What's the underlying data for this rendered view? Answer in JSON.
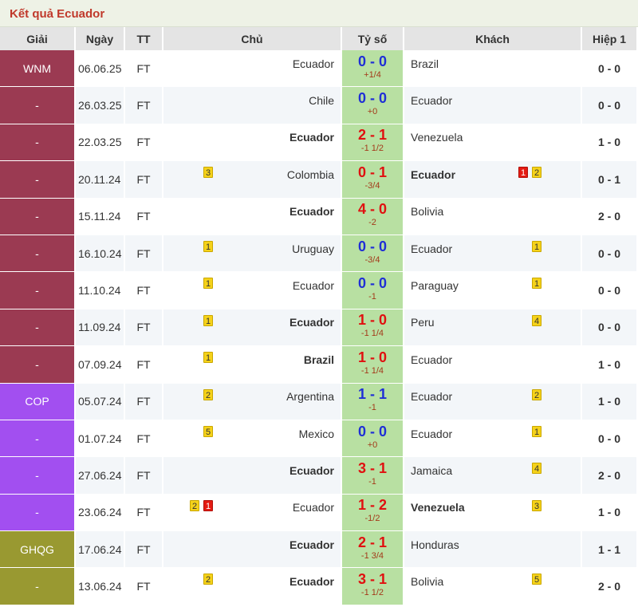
{
  "title": "Kết quả Ecuador",
  "headers": [
    "Giải",
    "Ngày",
    "TT",
    "Chủ",
    "Tỷ số",
    "Khách",
    "Hiệp 1"
  ],
  "rows": [
    {
      "league": "WNM",
      "league_color": "wnm",
      "date": "06.06.25",
      "status": "FT",
      "home": "Ecuador",
      "home_bold": false,
      "home_cards": [],
      "score": "0 - 0",
      "score_color": "blue",
      "handicap": "+1/4",
      "away": "Brazil",
      "away_bold": false,
      "away_cards": [],
      "ht": "0 - 0"
    },
    {
      "league": "-",
      "league_color": "wnm",
      "date": "26.03.25",
      "status": "FT",
      "home": "Chile",
      "home_bold": false,
      "home_cards": [],
      "score": "0 - 0",
      "score_color": "blue",
      "handicap": "+0",
      "away": "Ecuador",
      "away_bold": false,
      "away_cards": [],
      "ht": "0 - 0"
    },
    {
      "league": "-",
      "league_color": "wnm",
      "date": "22.03.25",
      "status": "FT",
      "home": "Ecuador",
      "home_bold": true,
      "home_cards": [],
      "score": "2 - 1",
      "score_color": "red",
      "handicap": "-1 1/2",
      "away": "Venezuela",
      "away_bold": false,
      "away_cards": [],
      "ht": "1 - 0"
    },
    {
      "league": "-",
      "league_color": "wnm",
      "date": "20.11.24",
      "status": "FT",
      "home": "Colombia",
      "home_bold": false,
      "home_cards": [
        {
          "type": "yellow",
          "n": "3"
        }
      ],
      "score": "0 - 1",
      "score_color": "red",
      "handicap": "-3/4",
      "away": "Ecuador",
      "away_bold": true,
      "away_cards": [
        {
          "type": "red",
          "n": "1"
        },
        {
          "type": "yellow",
          "n": "2"
        }
      ],
      "ht": "0 - 1"
    },
    {
      "league": "-",
      "league_color": "wnm",
      "date": "15.11.24",
      "status": "FT",
      "home": "Ecuador",
      "home_bold": true,
      "home_cards": [],
      "score": "4 - 0",
      "score_color": "red",
      "handicap": "-2",
      "away": "Bolivia",
      "away_bold": false,
      "away_cards": [],
      "ht": "2 - 0"
    },
    {
      "league": "-",
      "league_color": "wnm",
      "date": "16.10.24",
      "status": "FT",
      "home": "Uruguay",
      "home_bold": false,
      "home_cards": [
        {
          "type": "yellow",
          "n": "1"
        }
      ],
      "score": "0 - 0",
      "score_color": "blue",
      "handicap": "-3/4",
      "away": "Ecuador",
      "away_bold": false,
      "away_cards": [
        {
          "type": "yellow",
          "n": "1"
        }
      ],
      "ht": "0 - 0"
    },
    {
      "league": "-",
      "league_color": "wnm",
      "date": "11.10.24",
      "status": "FT",
      "home": "Ecuador",
      "home_bold": false,
      "home_cards": [
        {
          "type": "yellow",
          "n": "1"
        }
      ],
      "score": "0 - 0",
      "score_color": "blue",
      "handicap": "-1",
      "away": "Paraguay",
      "away_bold": false,
      "away_cards": [
        {
          "type": "yellow",
          "n": "1"
        }
      ],
      "ht": "0 - 0"
    },
    {
      "league": "-",
      "league_color": "wnm",
      "date": "11.09.24",
      "status": "FT",
      "home": "Ecuador",
      "home_bold": true,
      "home_cards": [
        {
          "type": "yellow",
          "n": "1"
        }
      ],
      "score": "1 - 0",
      "score_color": "red",
      "handicap": "-1 1/4",
      "away": "Peru",
      "away_bold": false,
      "away_cards": [
        {
          "type": "yellow",
          "n": "4"
        }
      ],
      "ht": "0 - 0"
    },
    {
      "league": "-",
      "league_color": "wnm",
      "date": "07.09.24",
      "status": "FT",
      "home": "Brazil",
      "home_bold": true,
      "home_cards": [
        {
          "type": "yellow",
          "n": "1"
        }
      ],
      "score": "1 - 0",
      "score_color": "red",
      "handicap": "-1 1/4",
      "away": "Ecuador",
      "away_bold": false,
      "away_cards": [],
      "ht": "1 - 0"
    },
    {
      "league": "COP",
      "league_color": "cop",
      "date": "05.07.24",
      "status": "FT",
      "home": "Argentina",
      "home_bold": false,
      "home_cards": [
        {
          "type": "yellow",
          "n": "2"
        }
      ],
      "score": "1 - 1",
      "score_color": "blue",
      "handicap": "-1",
      "away": "Ecuador",
      "away_bold": false,
      "away_cards": [
        {
          "type": "yellow",
          "n": "2"
        }
      ],
      "ht": "1 - 0"
    },
    {
      "league": "-",
      "league_color": "cop",
      "date": "01.07.24",
      "status": "FT",
      "home": "Mexico",
      "home_bold": false,
      "home_cards": [
        {
          "type": "yellow",
          "n": "5"
        }
      ],
      "score": "0 - 0",
      "score_color": "blue",
      "handicap": "+0",
      "away": "Ecuador",
      "away_bold": false,
      "away_cards": [
        {
          "type": "yellow",
          "n": "1"
        }
      ],
      "ht": "0 - 0"
    },
    {
      "league": "-",
      "league_color": "cop",
      "date": "27.06.24",
      "status": "FT",
      "home": "Ecuador",
      "home_bold": true,
      "home_cards": [],
      "score": "3 - 1",
      "score_color": "red",
      "handicap": "-1",
      "away": "Jamaica",
      "away_bold": false,
      "away_cards": [
        {
          "type": "yellow",
          "n": "4"
        }
      ],
      "ht": "2 - 0"
    },
    {
      "league": "-",
      "league_color": "cop",
      "date": "23.06.24",
      "status": "FT",
      "home": "Ecuador",
      "home_bold": false,
      "home_cards": [
        {
          "type": "yellow",
          "n": "2"
        },
        {
          "type": "red",
          "n": "1"
        }
      ],
      "score": "1 - 2",
      "score_color": "red",
      "handicap": "-1/2",
      "away": "Venezuela",
      "away_bold": true,
      "away_cards": [
        {
          "type": "yellow",
          "n": "3"
        }
      ],
      "ht": "1 - 0"
    },
    {
      "league": "GHQG",
      "league_color": "ghqg",
      "date": "17.06.24",
      "status": "FT",
      "home": "Ecuador",
      "home_bold": true,
      "home_cards": [],
      "score": "2 - 1",
      "score_color": "red",
      "handicap": "-1 3/4",
      "away": "Honduras",
      "away_bold": false,
      "away_cards": [],
      "ht": "1 - 1"
    },
    {
      "league": "-",
      "league_color": "ghqg",
      "date": "13.06.24",
      "status": "FT",
      "home": "Ecuador",
      "home_bold": true,
      "home_cards": [
        {
          "type": "yellow",
          "n": "2"
        }
      ],
      "score": "3 - 1",
      "score_color": "red",
      "handicap": "-1 1/2",
      "away": "Bolivia",
      "away_bold": false,
      "away_cards": [
        {
          "type": "yellow",
          "n": "5"
        }
      ],
      "ht": "2 - 0"
    }
  ],
  "colors": {
    "wnm": "#9b3a52",
    "cop": "#a24ff0",
    "ghqg": "#999931",
    "score_bg": "#b8e0a2",
    "title": "#c0392b"
  }
}
